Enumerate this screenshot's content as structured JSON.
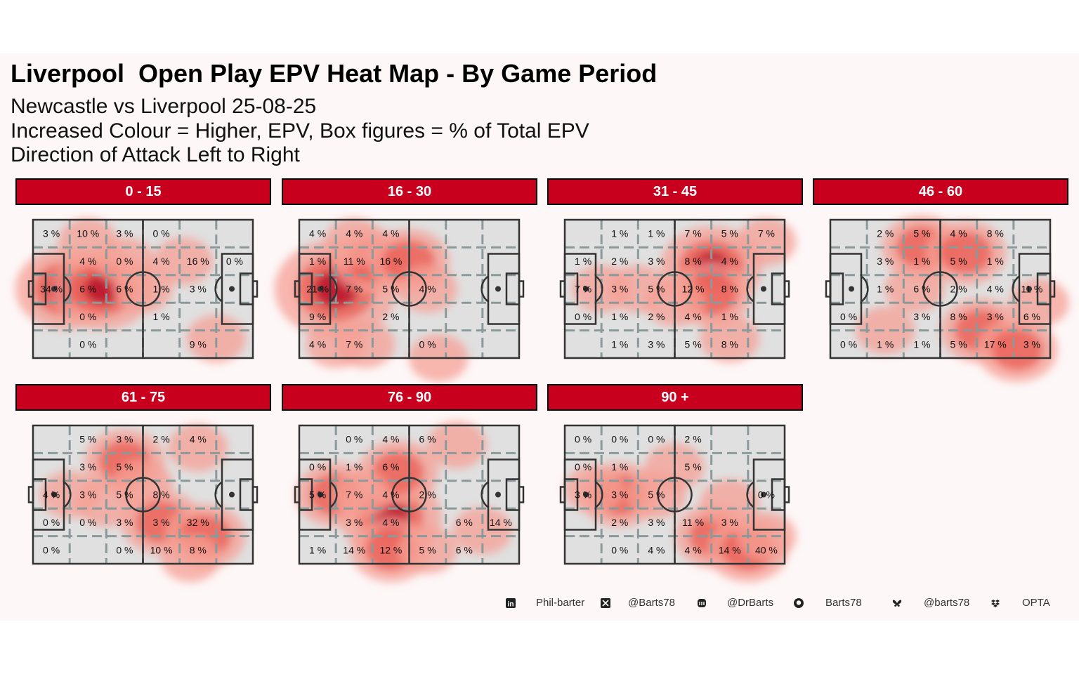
{
  "title": "Liverpool  Open Play EPV Heat Map - By Game Period",
  "subtitle_lines": [
    "Newcastle vs Liverpool 25-08-25",
    "Increased Colour = Higher, EPV, Box figures = % of Total EPV",
    "Direction of Attack Left to Right"
  ],
  "colors": {
    "strip": "#c8001e",
    "background": "#fdf7f7",
    "pitch": "#e0e0e0",
    "grid_dash": "#8a9a9a",
    "heat_low": "#f5a095",
    "heat_high": "#b8102a"
  },
  "chart_data": {
    "type": "heatmap",
    "grid": {
      "columns": 6,
      "rows": 5
    },
    "value_unit": "% of Total EPV",
    "panels": [
      {
        "label": "0 - 15",
        "cells": [
          [
            "3 %",
            "10 %",
            "3 %",
            "0 %",
            "",
            ""
          ],
          [
            "",
            "4 %",
            "0 %",
            "4 %",
            "16 %",
            "0 %"
          ],
          [
            "34 %",
            "6 %",
            "6 %",
            "1 %",
            "3 %",
            ""
          ],
          [
            "",
            "0 %",
            "",
            "1 %",
            "",
            ""
          ],
          [
            "",
            "0 %",
            "",
            "",
            "9 %",
            ""
          ]
        ],
        "hotspots": [
          [
            0.4,
            2,
            3
          ],
          [
            1.4,
            2,
            3
          ],
          [
            1,
            0.3,
            1
          ],
          [
            2,
            1,
            1
          ],
          [
            3.6,
            1,
            1
          ],
          [
            4.5,
            3.8,
            1
          ],
          [
            2.5,
            2,
            1
          ]
        ]
      },
      {
        "label": "16 - 30",
        "cells": [
          [
            "4 %",
            "4 %",
            "4 %",
            "",
            "",
            ""
          ],
          [
            "1 %",
            "11 %",
            "16 %",
            "",
            "",
            ""
          ],
          [
            "21 %",
            "7 %",
            "5 %",
            "4 %",
            "",
            ""
          ],
          [
            "9 %",
            "",
            "2 %",
            "",
            "",
            ""
          ],
          [
            "4 %",
            "7 %",
            "",
            "0 %",
            "",
            ""
          ]
        ],
        "hotspots": [
          [
            0.5,
            2,
            4
          ],
          [
            1.5,
            1,
            2
          ],
          [
            2.5,
            1,
            2
          ],
          [
            1,
            0.3,
            1
          ],
          [
            0.5,
            4,
            1
          ],
          [
            1.3,
            4,
            1
          ],
          [
            3.3,
            4.5,
            1
          ],
          [
            3,
            2,
            1
          ]
        ]
      },
      {
        "label": "31 - 45",
        "cells": [
          [
            "",
            "1 %",
            "1 %",
            "7 %",
            "5 %",
            "7 %"
          ],
          [
            "1 %",
            "2 %",
            "3 %",
            "8 %",
            "4 %",
            ""
          ],
          [
            "7 %",
            "3 %",
            "5 %",
            "12 %",
            "8 %",
            ""
          ],
          [
            "0 %",
            "1 %",
            "2 %",
            "4 %",
            "1 %",
            ""
          ],
          [
            "",
            "1 %",
            "3 %",
            "5 %",
            "8 %",
            ""
          ]
        ],
        "hotspots": [
          [
            3.5,
            1.2,
            3
          ],
          [
            3.5,
            2.2,
            2
          ],
          [
            1.5,
            2,
            1
          ],
          [
            2.5,
            2.5,
            1
          ],
          [
            4,
            3.8,
            1
          ],
          [
            5,
            0.3,
            1
          ],
          [
            0.5,
            2,
            1
          ]
        ]
      },
      {
        "label": "46 - 60",
        "cells": [
          [
            "",
            "2 %",
            "5 %",
            "4 %",
            "8 %",
            ""
          ],
          [
            "",
            "3 %",
            "1 %",
            "5 %",
            "1 %",
            ""
          ],
          [
            "",
            "1 %",
            "6 %",
            "2 %",
            "4 %",
            "11 %"
          ],
          [
            "0 %",
            "",
            "3 %",
            "8 %",
            "3 %",
            "6 %"
          ],
          [
            "0 %",
            "1 %",
            "1 %",
            "5 %",
            "17 %",
            "3 %"
          ]
        ],
        "hotspots": [
          [
            2,
            0.5,
            2
          ],
          [
            3.2,
            0.7,
            2
          ],
          [
            1.8,
            2,
            1
          ],
          [
            3.6,
            3.5,
            2
          ],
          [
            4.6,
            4.2,
            2
          ],
          [
            5.2,
            2.5,
            1
          ],
          [
            1,
            3.5,
            1
          ]
        ]
      },
      {
        "label": "61 - 75",
        "cells": [
          [
            "",
            "5 %",
            "3 %",
            "2 %",
            "4 %",
            ""
          ],
          [
            "",
            "3 %",
            "5 %",
            "",
            "",
            ""
          ],
          [
            "4 %",
            "3 %",
            "5 %",
            "8 %",
            "",
            ""
          ],
          [
            "0 %",
            "0 %",
            "3 %",
            "3 %",
            "32 %",
            ""
          ],
          [
            "0 %",
            "",
            "0 %",
            "10 %",
            "8 %",
            ""
          ]
        ],
        "hotspots": [
          [
            2,
            0.8,
            2
          ],
          [
            2.5,
            1.6,
            1
          ],
          [
            3,
            3,
            2
          ],
          [
            4.2,
            3.5,
            2
          ],
          [
            3.8,
            4.3,
            1
          ],
          [
            0.5,
            2,
            1
          ],
          [
            1.5,
            2.3,
            1
          ],
          [
            4,
            0.3,
            1
          ]
        ]
      },
      {
        "label": "76 - 90",
        "cells": [
          [
            "",
            "0 %",
            "4 %",
            "6 %",
            "",
            ""
          ],
          [
            "0 %",
            "1 %",
            "6 %",
            "",
            "",
            ""
          ],
          [
            "5 %",
            "7 %",
            "4 %",
            "2 %",
            "",
            ""
          ],
          [
            "",
            "3 %",
            "4 %",
            "",
            "6 %",
            "14 %"
          ],
          [
            "1 %",
            "14 %",
            "12 %",
            "5 %",
            "6 %",
            ""
          ]
        ],
        "hotspots": [
          [
            0.5,
            2,
            2
          ],
          [
            2,
            2.8,
            3
          ],
          [
            2.2,
            1.2,
            2
          ],
          [
            2,
            4,
            2
          ],
          [
            1.2,
            2,
            1
          ],
          [
            4.5,
            3.3,
            1
          ],
          [
            3,
            4,
            1
          ],
          [
            3.8,
            0.2,
            1
          ]
        ]
      },
      {
        "label": "90 +",
        "cells": [
          [
            "0 %",
            "0 %",
            "0 %",
            "2 %",
            "",
            ""
          ],
          [
            "0 %",
            "1 %",
            "",
            "5 %",
            "",
            ""
          ],
          [
            "3 %",
            "3 %",
            "5 %",
            "",
            "",
            "0 %"
          ],
          [
            "",
            "2 %",
            "3 %",
            "11 %",
            "3 %",
            ""
          ],
          [
            "",
            "0 %",
            "4 %",
            "4 %",
            "14 %",
            "40 %"
          ]
        ],
        "hotspots": [
          [
            1,
            2,
            2
          ],
          [
            2,
            2,
            1
          ],
          [
            2.5,
            1,
            1
          ],
          [
            3.6,
            3.5,
            2
          ],
          [
            4.5,
            4,
            2
          ],
          [
            5,
            3.5,
            1
          ],
          [
            0.3,
            1.8,
            1
          ],
          [
            4,
            2.3,
            1
          ]
        ]
      }
    ]
  },
  "footer": [
    {
      "icon": "linkedin-icon",
      "text": "Phil-barter"
    },
    {
      "icon": "x-icon",
      "text": "@Barts78"
    },
    {
      "icon": "mastodon-icon",
      "text": "@DrBarts"
    },
    {
      "icon": "github-icon",
      "text": "Barts78"
    },
    {
      "icon": "bluesky-icon",
      "text": "@barts78"
    },
    {
      "icon": "dropbox-icon",
      "text": "OPTA"
    }
  ]
}
